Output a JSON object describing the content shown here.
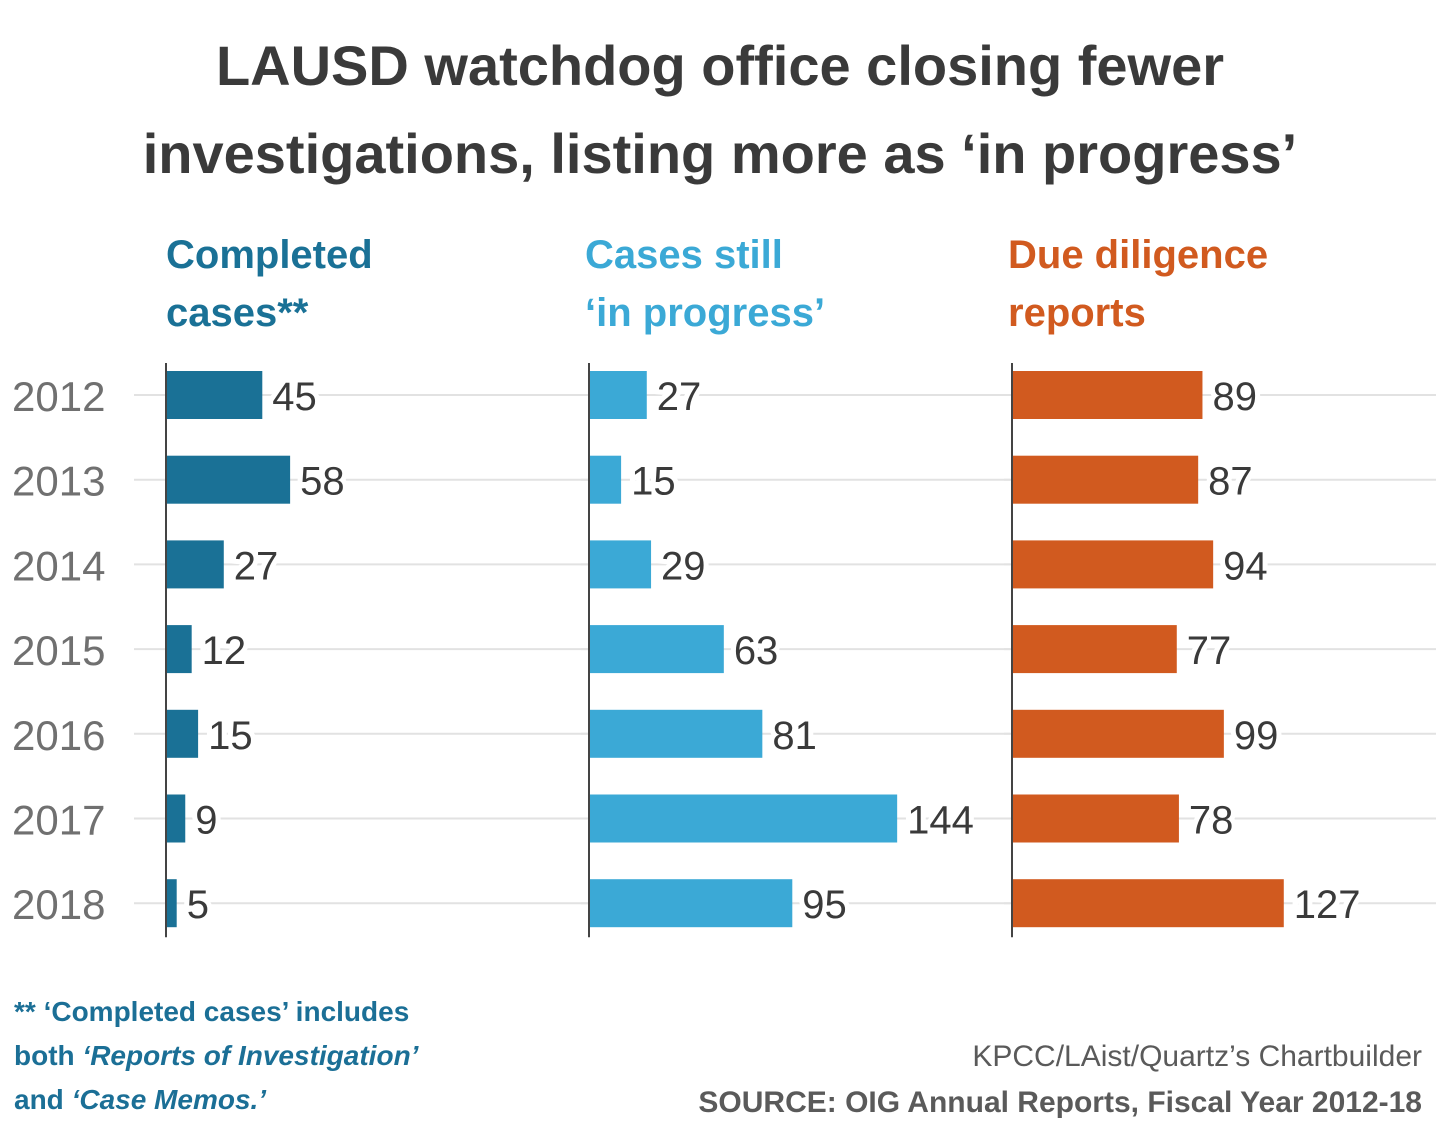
{
  "title": {
    "line1": "LAUSD watchdog office closing fewer",
    "line2": "investigations, listing more as ‘in progress’"
  },
  "colors": {
    "completed": "#1a7196",
    "in_progress": "#3ba9d6",
    "due_diligence": "#d15a1f",
    "text": "#3a3a3a",
    "grid": "#e2e2e2"
  },
  "chart_data": {
    "type": "bar",
    "orientation": "horizontal",
    "categories": [
      "2012",
      "2013",
      "2014",
      "2015",
      "2016",
      "2017",
      "2018"
    ],
    "series": [
      {
        "name": "Completed cases**",
        "values": [
          45,
          58,
          27,
          12,
          15,
          9,
          5
        ]
      },
      {
        "name": "Cases still ‘in progress’",
        "values": [
          27,
          15,
          29,
          63,
          81,
          144,
          95
        ]
      },
      {
        "name": "Due diligence reports",
        "values": [
          89,
          87,
          94,
          77,
          99,
          78,
          127
        ]
      }
    ],
    "data_labels": true,
    "grid": "horizontal"
  },
  "panels": [
    {
      "line1": "Completed",
      "line2": "cases**"
    },
    {
      "line1": "Cases still",
      "line2": "‘in progress’"
    },
    {
      "line1": "Due diligence",
      "line2": "reports"
    }
  ],
  "footnote": {
    "line1": "** ‘Completed cases’ includes",
    "line2_prefix": "both ",
    "line2_em": "‘Reports of Investigation’",
    "line3_prefix": "and ",
    "line3_em": "‘Case Memos.’"
  },
  "credit": "KPCC/LAist/Quartz’s Chartbuilder",
  "source": "SOURCE: OIG Annual Reports, Fiscal Year 2012-18"
}
